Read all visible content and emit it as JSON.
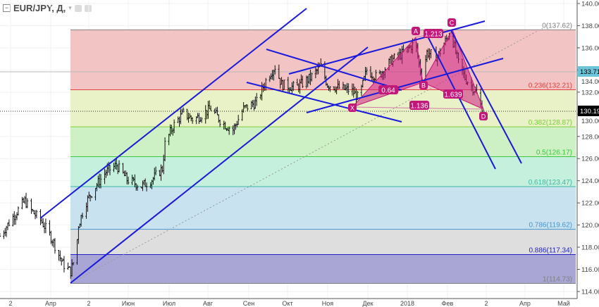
{
  "header": {
    "symbol": "EUR/JPY, Д,",
    "collapse_icon": "minus-box-icon",
    "dropdown_icon": "chevron-down-icon",
    "buttons": [
      "eye-icon",
      "gear-icon"
    ]
  },
  "colors": {
    "up_bar": "#000000",
    "trend_line": "#1a1adb",
    "pattern": "#c2187a",
    "last_price_bg": "#000000",
    "marker_bg": "#6cc4d9"
  },
  "price_labels": {
    "last": "130.19",
    "marker": "133.71"
  },
  "fib": [
    {
      "label": "0(137.62)",
      "price": 137.62,
      "color": "#808080",
      "fill": "#f2c4c4"
    },
    {
      "label": "0.236(132.21)",
      "price": 132.21,
      "color": "#e04040",
      "fill": "#e8f2c6"
    },
    {
      "label": "0.382(128.87)",
      "price": 128.87,
      "color": "#7ccc3c",
      "fill": "#cdf0c4"
    },
    {
      "label": "0.5(126.17)",
      "price": 126.17,
      "color": "#3cc83c",
      "fill": "#c6f0de"
    },
    {
      "label": "0.618(123.47)",
      "price": 123.47,
      "color": "#3cb8a0",
      "fill": "#c8e2f0"
    },
    {
      "label": "0.786(119.62)",
      "price": 119.62,
      "color": "#4a94c8",
      "fill": "#dedede"
    },
    {
      "label": "0.886(117.34)",
      "price": 117.34,
      "color": "#2222cc",
      "fill": "#a9a6d6"
    },
    {
      "label": "1(114.73)",
      "price": 114.73,
      "color": "#808080",
      "fill": ""
    }
  ],
  "pattern": {
    "points": [
      {
        "label": "X"
      },
      {
        "label": "A"
      },
      {
        "label": "B"
      },
      {
        "label": "C"
      },
      {
        "label": "D"
      }
    ],
    "ratios": [
      "0.64",
      "1.213",
      "1.639",
      "1.136"
    ]
  },
  "chart_data": {
    "type": "ohlc",
    "title": "EUR/JPY, Д,",
    "ylim": [
      114,
      140
    ],
    "yticks": [
      "140.00",
      "138.00",
      "136.00",
      "134.00",
      "132.00",
      "130.00",
      "128.00",
      "126.00",
      "124.00",
      "122.00",
      "120.00",
      "118.00",
      "116.00",
      "114.00"
    ],
    "xticks": [
      "2",
      "Апр",
      "2",
      "Июн",
      "Июл",
      "Авг",
      "Сен",
      "Окт",
      "Ноя",
      "Дек",
      "2018",
      "Фев",
      "2",
      "Апр",
      "Май"
    ],
    "grid": true,
    "close_path": [
      [
        "2017-02-24",
        119.0
      ],
      [
        "2017-03-07",
        120.9
      ],
      [
        "2017-03-15",
        122.2
      ],
      [
        "2017-03-20",
        121.3
      ],
      [
        "2017-03-28",
        120.3
      ],
      [
        "2017-04-05",
        118.7
      ],
      [
        "2017-04-13",
        116.5
      ],
      [
        "2017-04-19",
        115.8
      ],
      [
        "2017-04-23",
        117.4
      ],
      [
        "2017-04-25",
        120.0
      ],
      [
        "2017-04-30",
        121.9
      ],
      [
        "2017-05-08",
        123.5
      ],
      [
        "2017-05-16",
        124.8
      ],
      [
        "2017-05-24",
        125.4
      ],
      [
        "2017-06-01",
        124.1
      ],
      [
        "2017-06-12",
        123.5
      ],
      [
        "2017-06-20",
        124.1
      ],
      [
        "2017-06-28",
        125.1
      ],
      [
        "2017-06-30",
        127.3
      ],
      [
        "2017-07-06",
        128.9
      ],
      [
        "2017-07-14",
        130.1
      ],
      [
        "2017-07-22",
        129.5
      ],
      [
        "2017-08-04",
        130.5
      ],
      [
        "2017-08-13",
        129.2
      ],
      [
        "2017-08-21",
        128.6
      ],
      [
        "2017-08-29",
        130.5
      ],
      [
        "2017-09-08",
        131.1
      ],
      [
        "2017-09-16",
        133.3
      ],
      [
        "2017-09-22",
        134.3
      ],
      [
        "2017-09-27",
        132.7
      ],
      [
        "2017-10-08",
        132.4
      ],
      [
        "2017-10-19",
        133.3
      ],
      [
        "2017-10-27",
        134.3
      ],
      [
        "2017-11-01",
        132.7
      ],
      [
        "2017-11-09",
        132.4
      ],
      [
        "2017-11-20",
        132.1
      ],
      [
        "2017-11-25",
        131.4
      ],
      [
        "2017-12-01",
        134.0
      ],
      [
        "2017-12-09",
        133.3
      ],
      [
        "2017-12-20",
        134.9
      ],
      [
        "2017-12-30",
        135.6
      ],
      [
        "2018-01-07",
        136.5
      ],
      [
        "2018-01-12",
        133.3
      ],
      [
        "2018-01-16",
        135.6
      ],
      [
        "2018-01-24",
        135.2
      ],
      [
        "2018-02-03",
        137.5
      ],
      [
        "2018-02-09",
        134.6
      ],
      [
        "2018-02-14",
        133.3
      ],
      [
        "2018-02-22",
        132.1
      ],
      [
        "2018-02-28",
        130.2
      ]
    ]
  }
}
